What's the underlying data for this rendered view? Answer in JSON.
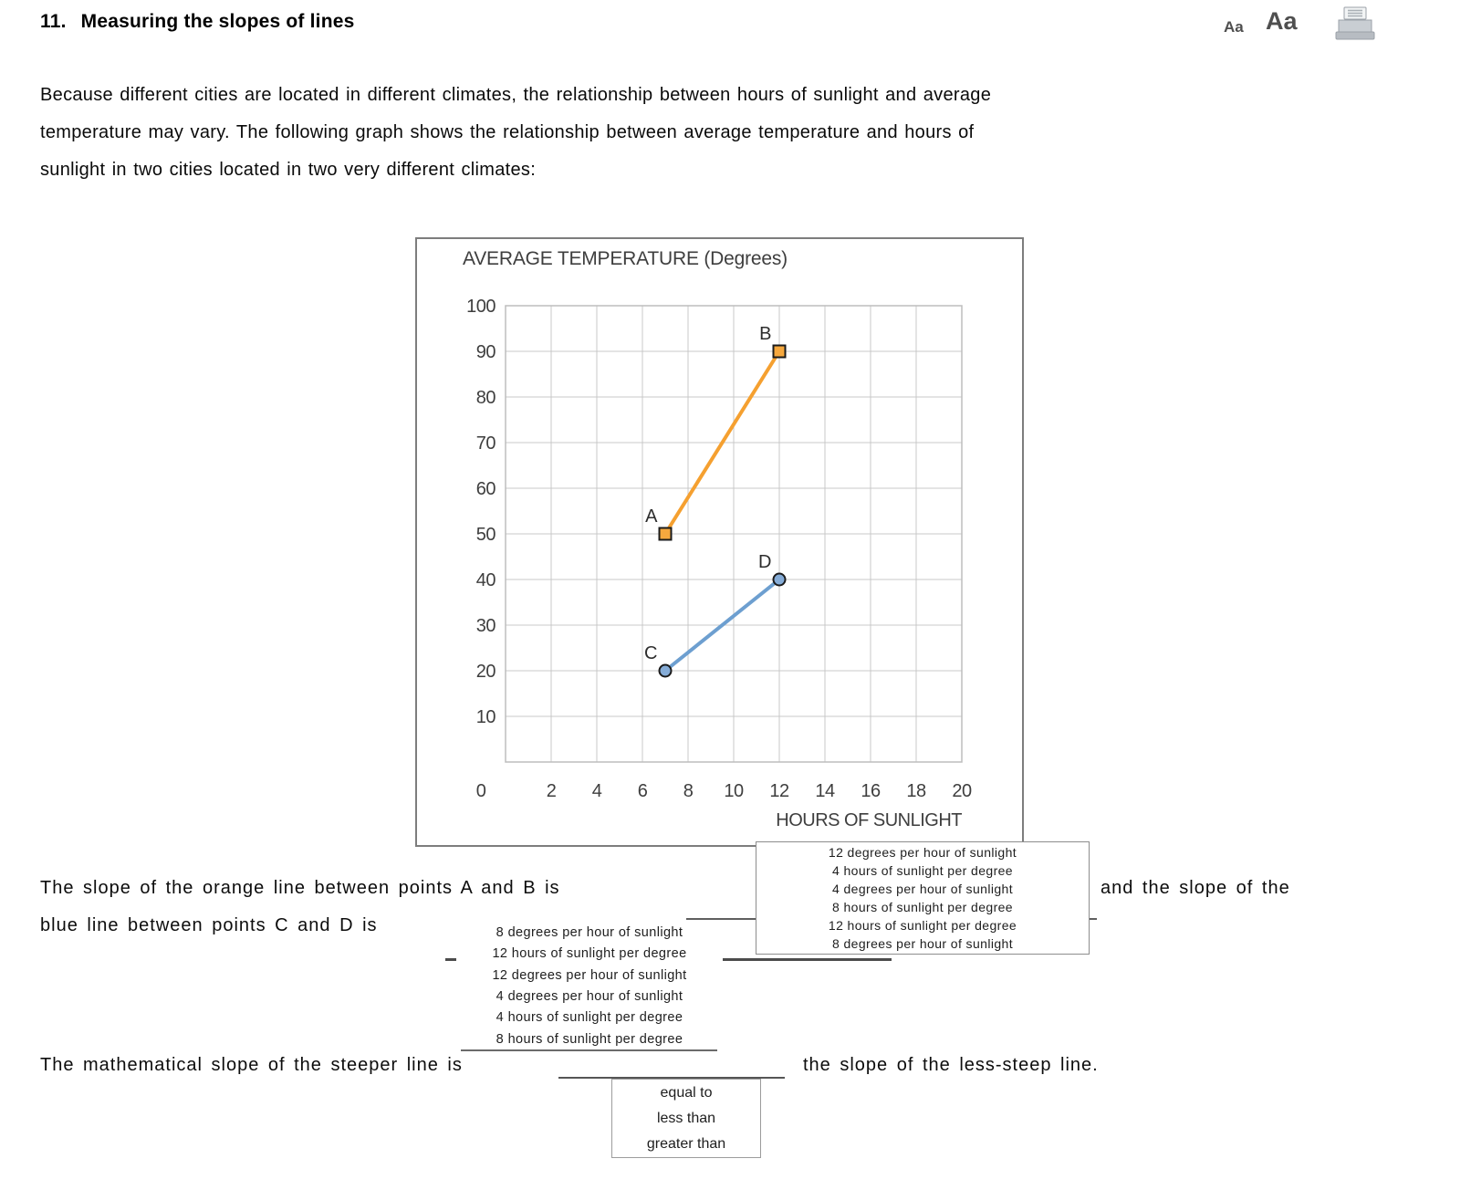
{
  "header": {
    "number": "11.",
    "title": "Measuring the slopes of lines"
  },
  "toolbar": {
    "text_size_small_label": "Aa",
    "text_size_large_label": "Aa",
    "printer_icon": "printer-icon"
  },
  "intro_lines": [
    "Because different cities are located in different climates, the relationship between hours of sunlight and average",
    "temperature may vary. The following graph shows the relationship between average temperature and hours of",
    "sunlight in two cities located in two very different climates:"
  ],
  "chart_data": {
    "type": "line",
    "title": "AVERAGE TEMPERATURE (Degrees)",
    "xlabel": "HOURS OF SUNLIGHT",
    "ylabel": "",
    "xlim": [
      0,
      20
    ],
    "ylim": [
      0,
      100
    ],
    "x_ticks": [
      0,
      2,
      4,
      6,
      8,
      10,
      12,
      14,
      16,
      18,
      20
    ],
    "y_ticks": [
      100,
      90,
      80,
      70,
      60,
      50,
      40,
      30,
      20,
      10
    ],
    "x_grid_step": 2,
    "y_grid_step": 10,
    "grid": true,
    "legend": "none",
    "colors": {
      "grid": "#C9C9C9",
      "plot_border": "#BDBDBD",
      "axis_text": "#3E3E3E"
    },
    "series": [
      {
        "name": "orange-line-AB",
        "color": "#F5A030",
        "marker": "square",
        "marker_fill": "#F6A83E",
        "points": [
          {
            "label": "A",
            "x": 7,
            "y": 50
          },
          {
            "label": "B",
            "x": 12,
            "y": 90
          }
        ]
      },
      {
        "name": "blue-line-CD",
        "color": "#6D9FD0",
        "marker": "circle",
        "marker_fill": "#85ACD7",
        "points": [
          {
            "label": "C",
            "x": 7,
            "y": 20
          },
          {
            "label": "D",
            "x": 12,
            "y": 40
          }
        ]
      }
    ]
  },
  "question1": {
    "text_before": "The slope of the orange line between points A and B is",
    "text_after": "and the slope of the",
    "options": [
      "12 degrees per hour of sunlight",
      "4 hours of sunlight per degree",
      "4 degrees per hour of sunlight",
      "8 hours of sunlight per degree",
      "12 hours of sunlight per degree",
      "8 degrees per hour of sunlight"
    ]
  },
  "question2": {
    "text": "blue line between points C and D is",
    "options": [
      "8 degrees per hour of sunlight",
      "12 hours of sunlight per degree",
      "12 degrees per hour of sunlight",
      "4 degrees per hour of sunlight",
      "4 hours of sunlight per degree",
      "8 hours of sunlight per degree"
    ]
  },
  "question3": {
    "text_before": "The mathematical slope of the steeper line is",
    "text_after": "the slope of the less-steep line.",
    "options": [
      "equal to",
      "less than",
      "greater than"
    ]
  }
}
